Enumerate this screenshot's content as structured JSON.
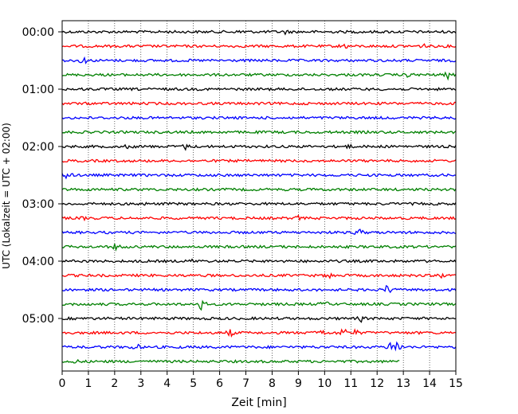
{
  "chart_data": {
    "type": "line",
    "title": "",
    "xlabel": "Zeit  [min]",
    "ylabel": "UTC (Lokalzeit = UTC + 02:00)",
    "xlim": [
      0,
      15
    ],
    "x_ticks": [
      "0",
      "1",
      "2",
      "3",
      "4",
      "5",
      "6",
      "7",
      "8",
      "9",
      "10",
      "11",
      "12",
      "13",
      "14",
      "15"
    ],
    "y_tick_labels": [
      "00:00",
      "01:00",
      "02:00",
      "03:00",
      "04:00",
      "05:00"
    ],
    "grid": "vertical dotted",
    "trace_colors": [
      "#000000",
      "#ff0000",
      "#0000ff",
      "#008000"
    ],
    "traces_count": 24,
    "trace_interval_minutes": 15,
    "last_trace_end_min": 12.85,
    "events": [
      {
        "trace": 0,
        "x": 6.85,
        "amp": 3
      },
      {
        "trace": 0,
        "x": 8.5,
        "amp": 2
      },
      {
        "trace": 1,
        "x": 10.75,
        "amp": 4
      },
      {
        "trace": 1,
        "x": 13.8,
        "amp": 2
      },
      {
        "trace": 2,
        "x": 0.8,
        "amp": 6
      },
      {
        "trace": 3,
        "x": 13.2,
        "amp": 3
      },
      {
        "trace": 3,
        "x": 14.7,
        "amp": 4
      },
      {
        "trace": 8,
        "x": 2.55,
        "amp": 3
      },
      {
        "trace": 8,
        "x": 4.7,
        "amp": 3
      },
      {
        "trace": 8,
        "x": 10.9,
        "amp": 2
      },
      {
        "trace": 10,
        "x": 0.15,
        "amp": 7
      },
      {
        "trace": 12,
        "x": 3.0,
        "amp": 2
      },
      {
        "trace": 13,
        "x": 0.9,
        "amp": 2
      },
      {
        "trace": 13,
        "x": 9.0,
        "amp": 2
      },
      {
        "trace": 14,
        "x": 11.3,
        "amp": 6
      },
      {
        "trace": 15,
        "x": 2.1,
        "amp": 7
      },
      {
        "trace": 16,
        "x": 5.0,
        "amp": 2
      },
      {
        "trace": 17,
        "x": 10.2,
        "amp": 3
      },
      {
        "trace": 17,
        "x": 14.5,
        "amp": 3
      },
      {
        "trace": 18,
        "x": 12.4,
        "amp": 8
      },
      {
        "trace": 19,
        "x": 5.3,
        "amp": 8
      },
      {
        "trace": 19,
        "x": 10.0,
        "amp": 4
      },
      {
        "trace": 20,
        "x": 11.4,
        "amp": 3
      },
      {
        "trace": 21,
        "x": 6.4,
        "amp": 5
      },
      {
        "trace": 21,
        "x": 9.85,
        "amp": 7
      },
      {
        "trace": 21,
        "x": 10.7,
        "amp": 9
      },
      {
        "trace": 21,
        "x": 11.2,
        "amp": 4
      },
      {
        "trace": 22,
        "x": 2.8,
        "amp": 6
      },
      {
        "trace": 22,
        "x": 12.5,
        "amp": 5
      },
      {
        "trace": 22,
        "x": 12.75,
        "amp": 10
      },
      {
        "trace": 23,
        "x": 0.5,
        "amp": 2
      }
    ]
  }
}
